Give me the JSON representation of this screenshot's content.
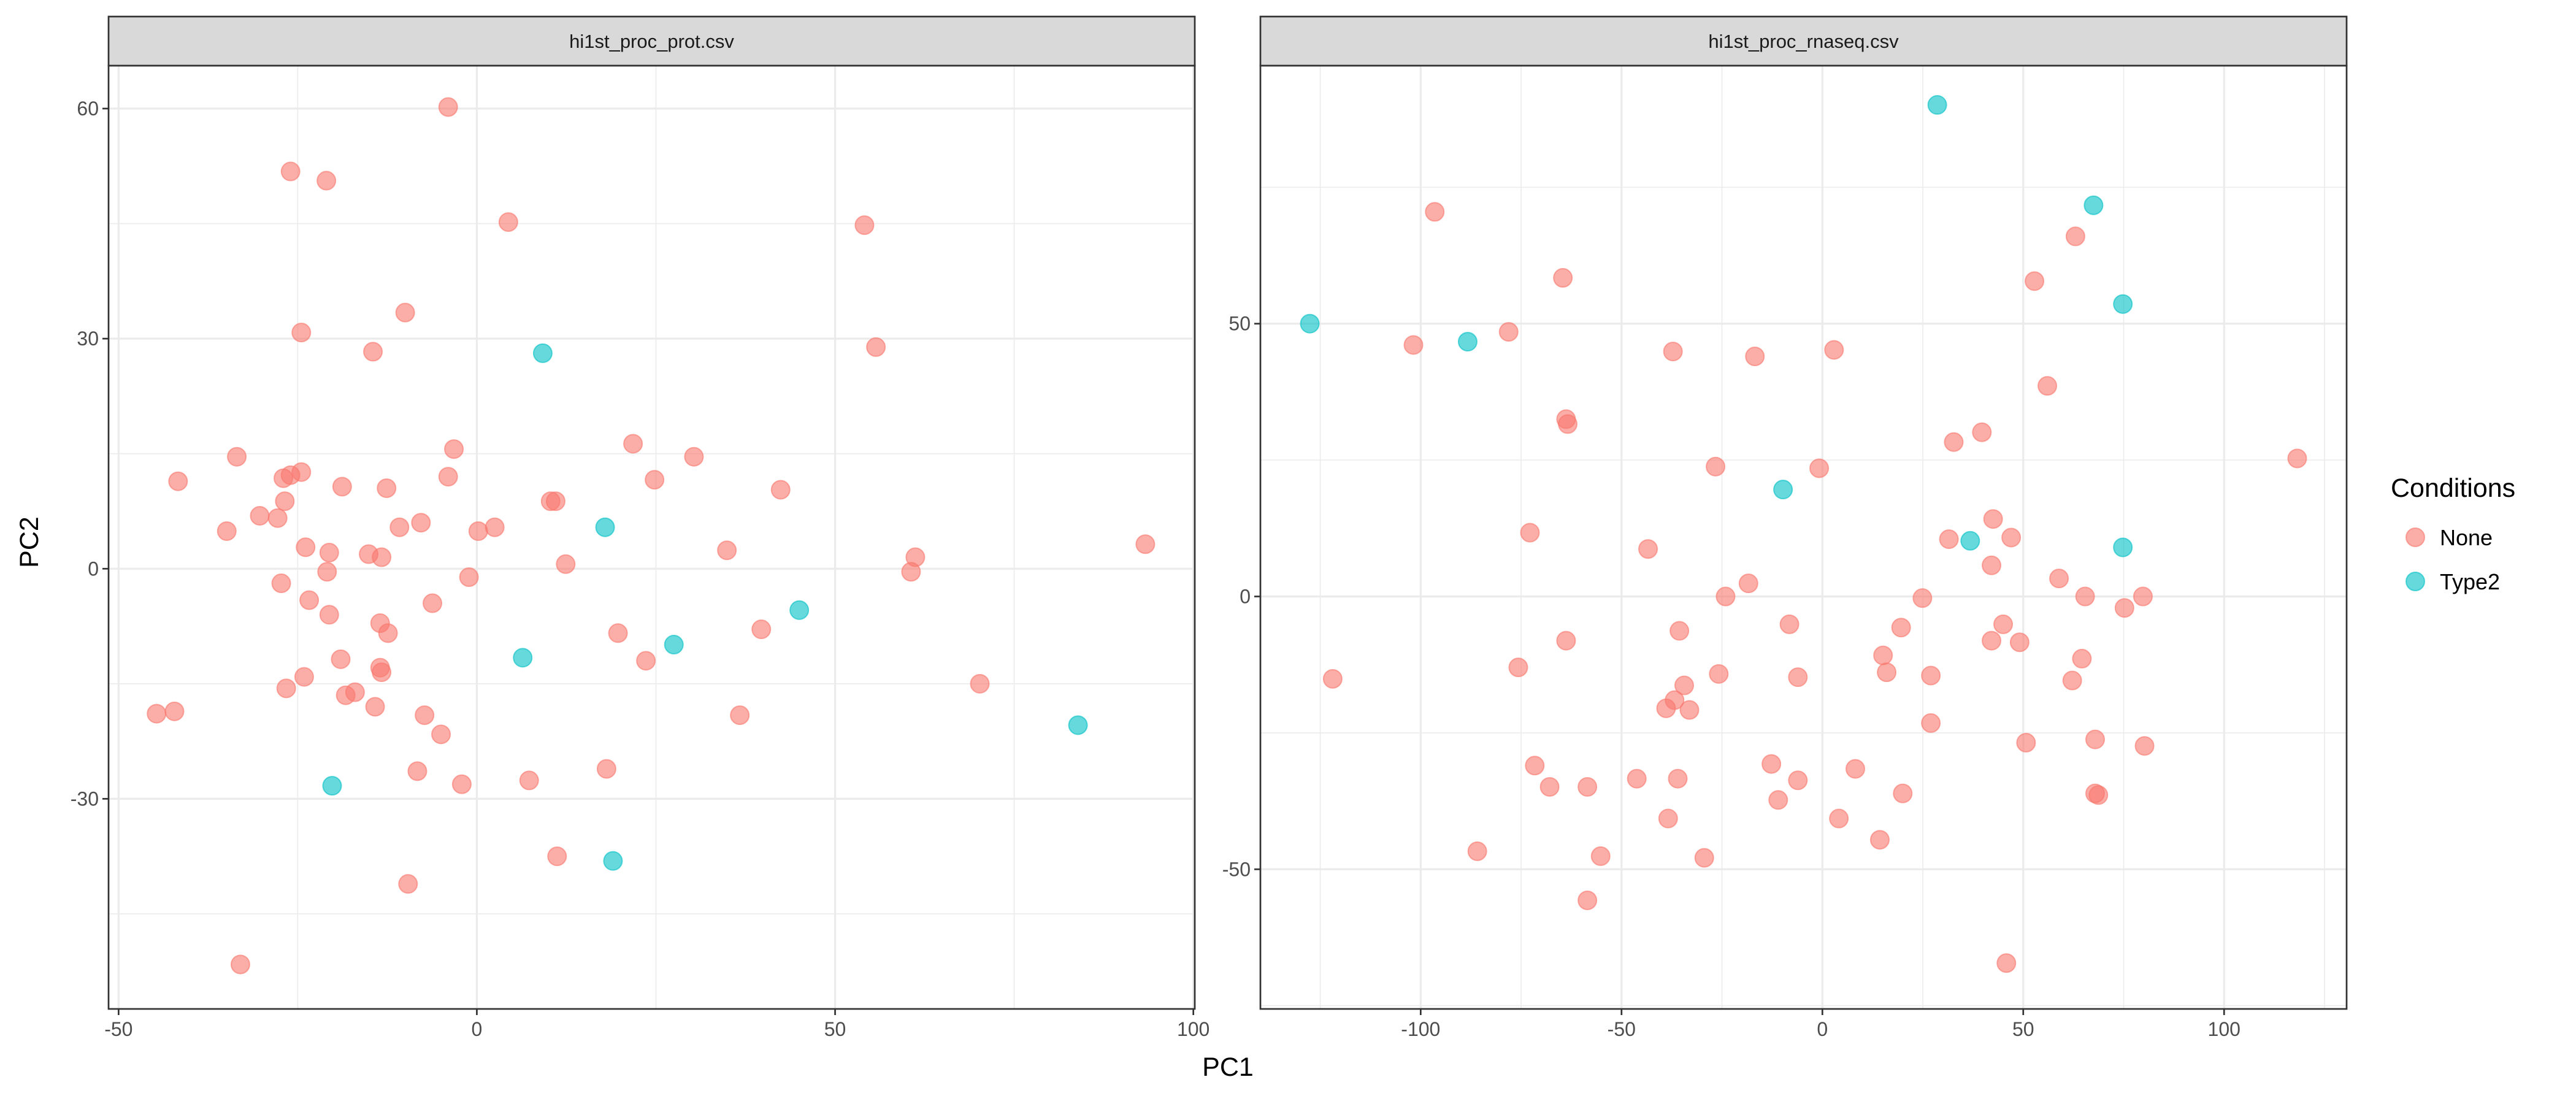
{
  "axes": {
    "xlabel": "PC1",
    "ylabel": "PC2"
  },
  "legend": {
    "title": "Conditions",
    "placement": "right",
    "entries": [
      {
        "label": "None",
        "color": "#F8766D"
      },
      {
        "label": "Type2",
        "color": "#00BFC4"
      }
    ]
  },
  "chart_data": [
    {
      "type": "scatter",
      "title": "hi1st_proc_prot.csv",
      "xlim": [
        -51.4,
        100.2
      ],
      "ylim": [
        -57.4,
        65.6
      ],
      "xticks": [
        -50,
        0,
        50,
        100
      ],
      "yticks": [
        -30,
        0,
        30,
        60
      ],
      "grid": true,
      "series": [
        {
          "name": "None",
          "color": "#F8766D",
          "points": [
            [
              -4,
              60.2
            ],
            [
              -26,
              51.8
            ],
            [
              -21,
              50.6
            ],
            [
              4.4,
              45.2
            ],
            [
              54.1,
              44.8
            ],
            [
              -10,
              33.4
            ],
            [
              -24.5,
              30.8
            ],
            [
              -14.5,
              28.3
            ],
            [
              55.7,
              28.9
            ],
            [
              21.8,
              16.3
            ],
            [
              -3.2,
              15.6
            ],
            [
              -41.7,
              11.4
            ],
            [
              -33.5,
              14.6
            ],
            [
              30.3,
              14.6
            ],
            [
              -27,
              11.8
            ],
            [
              -26,
              12.2
            ],
            [
              -24.5,
              12.6
            ],
            [
              -4,
              12
            ],
            [
              24.8,
              11.6
            ],
            [
              -18.8,
              10.7
            ],
            [
              -12.6,
              10.5
            ],
            [
              42.4,
              10.3
            ],
            [
              -26.8,
              8.8
            ],
            [
              10.3,
              8.8
            ],
            [
              11,
              8.8
            ],
            [
              -30.3,
              6.9
            ],
            [
              -27.8,
              6.6
            ],
            [
              -34.9,
              4.9
            ],
            [
              -10.8,
              5.4
            ],
            [
              -7.8,
              6
            ],
            [
              0.2,
              4.9
            ],
            [
              2.5,
              5.4
            ],
            [
              -23.9,
              2.8
            ],
            [
              -20.6,
              2.1
            ],
            [
              -15.1,
              1.9
            ],
            [
              -13.3,
              1.5
            ],
            [
              34.9,
              2.4
            ],
            [
              61.2,
              1.5
            ],
            [
              60.6,
              -0.4
            ],
            [
              93.3,
              3.2
            ],
            [
              12.4,
              0.6
            ],
            [
              -1.1,
              -1.1
            ],
            [
              -27.3,
              -1.9
            ],
            [
              -20.9,
              -0.4
            ],
            [
              -23.4,
              -4.1
            ],
            [
              -6.2,
              -4.5
            ],
            [
              -20.6,
              -6
            ],
            [
              -13.5,
              -7.1
            ],
            [
              -12.4,
              -8.4
            ],
            [
              19.7,
              -8.4
            ],
            [
              39.7,
              -7.9
            ],
            [
              -19,
              -11.8
            ],
            [
              23.6,
              -12
            ],
            [
              -13.5,
              -12.9
            ],
            [
              -13.3,
              -13.5
            ],
            [
              -24.1,
              -14.1
            ],
            [
              -26.6,
              -15.6
            ],
            [
              70.2,
              -15
            ],
            [
              -17,
              -16.1
            ],
            [
              -18.3,
              -16.5
            ],
            [
              -14.2,
              -18
            ],
            [
              -44.7,
              -18.9
            ],
            [
              -42.2,
              -18.6
            ],
            [
              36.7,
              -19.1
            ],
            [
              -7.3,
              -19.1
            ],
            [
              -5,
              -21.6
            ],
            [
              -8.3,
              -26.4
            ],
            [
              -2.1,
              -28.1
            ],
            [
              7.3,
              -27.6
            ],
            [
              18.1,
              -26.1
            ],
            [
              11.2,
              -37.5
            ],
            [
              -9.6,
              -41.1
            ],
            [
              -33,
              -51.6
            ]
          ]
        },
        {
          "name": "Type2",
          "color": "#00BFC4",
          "points": [
            [
              9.2,
              28.1
            ],
            [
              17.9,
              5.4
            ],
            [
              27.5,
              -9.9
            ],
            [
              45,
              -5.4
            ],
            [
              6.4,
              -11.6
            ],
            [
              83.9,
              -20.4
            ],
            [
              -20.2,
              -28.3
            ],
            [
              19,
              -38.1
            ]
          ]
        }
      ]
    },
    {
      "type": "scatter",
      "title": "hi1st_proc_rnaseq.csv",
      "xlim": [
        -139.9,
        130.5
      ],
      "ylim": [
        -75.6,
        97.3
      ],
      "xticks": [
        -100,
        -50,
        0,
        50,
        100
      ],
      "yticks": [
        -50,
        0,
        50
      ],
      "grid": true,
      "series": [
        {
          "name": "None",
          "color": "#F8766D",
          "points": [
            [
              -96.5,
              70.5
            ],
            [
              63,
              66
            ],
            [
              -64.6,
              58.4
            ],
            [
              52.8,
              57.8
            ],
            [
              -101.8,
              46.1
            ],
            [
              -78.1,
              48.5
            ],
            [
              -37.2,
              44.9
            ],
            [
              -16.8,
              44
            ],
            [
              2.9,
              45.2
            ],
            [
              56,
              38.6
            ],
            [
              -63.8,
              32.5
            ],
            [
              -63.4,
              31.6
            ],
            [
              39.7,
              30.1
            ],
            [
              32.7,
              28.3
            ],
            [
              118.2,
              25.3
            ],
            [
              -26.6,
              23.8
            ],
            [
              -0.8,
              23.5
            ],
            [
              -72.8,
              11.7
            ],
            [
              -43.4,
              8.7
            ],
            [
              42.5,
              14.2
            ],
            [
              31.5,
              10.5
            ],
            [
              47,
              10.8
            ],
            [
              42.1,
              5.7
            ],
            [
              -18.4,
              2.4
            ],
            [
              -24.1,
              0
            ],
            [
              58.9,
              3.3
            ],
            [
              24.9,
              -0.3
            ],
            [
              65.4,
              0
            ],
            [
              79.8,
              0
            ],
            [
              75.2,
              -2.1
            ],
            [
              -8.2,
              -5.1
            ],
            [
              -35.6,
              -6.3
            ],
            [
              19.6,
              -5.7
            ],
            [
              45,
              -5.1
            ],
            [
              49.1,
              -8.4
            ],
            [
              42.1,
              -8.1
            ],
            [
              64.6,
              -11.4
            ],
            [
              15.1,
              -10.8
            ],
            [
              -63.8,
              -8.1
            ],
            [
              -121.9,
              -15.1
            ],
            [
              -75.7,
              -13
            ],
            [
              16,
              -13.9
            ],
            [
              62.2,
              -15.4
            ],
            [
              27,
              -14.5
            ],
            [
              -6.1,
              -14.8
            ],
            [
              -25.8,
              -14.2
            ],
            [
              -34.4,
              -16.3
            ],
            [
              -36.8,
              -19
            ],
            [
              -33.1,
              -20.8
            ],
            [
              -38.9,
              -20.5
            ],
            [
              27,
              -23.2
            ],
            [
              50.7,
              -26.8
            ],
            [
              67.9,
              -26.2
            ],
            [
              80.2,
              -27.4
            ],
            [
              -71.6,
              -31
            ],
            [
              -12.7,
              -30.7
            ],
            [
              8.2,
              -31.6
            ],
            [
              -67.9,
              -34.9
            ],
            [
              -46.2,
              -33.4
            ],
            [
              -36,
              -33.4
            ],
            [
              -58.5,
              -34.9
            ],
            [
              -6.1,
              -33.7
            ],
            [
              20,
              -36.1
            ],
            [
              67.9,
              -36.1
            ],
            [
              68.7,
              -36.4
            ],
            [
              -11,
              -37.3
            ],
            [
              -38.4,
              -40.7
            ],
            [
              4.1,
              -40.7
            ],
            [
              14.3,
              -44.6
            ],
            [
              -85.9,
              -46.7
            ],
            [
              -55.2,
              -47.6
            ],
            [
              -29.4,
              -47.9
            ],
            [
              -58.5,
              -55.7
            ],
            [
              45.8,
              -67.2
            ]
          ]
        },
        {
          "name": "Type2",
          "color": "#00BFC4",
          "points": [
            [
              28.6,
              90.1
            ],
            [
              67.5,
              71.7
            ],
            [
              74.8,
              53.6
            ],
            [
              -127.6,
              50
            ],
            [
              -88.3,
              46.7
            ],
            [
              -9.8,
              19.6
            ],
            [
              36.8,
              10.2
            ],
            [
              74.8,
              9
            ]
          ]
        }
      ]
    }
  ]
}
